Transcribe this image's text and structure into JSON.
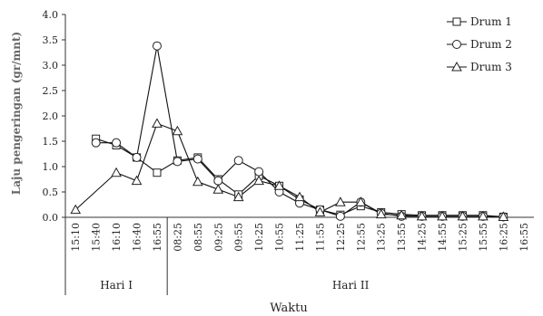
{
  "chart_data": {
    "type": "line",
    "title": "",
    "ylabel": "Laju pengeringan (gr/mnt)",
    "xlabel": "Waktu",
    "ylim": [
      0,
      4
    ],
    "y_ticks": [
      "0.0",
      "0.5",
      "1.0",
      "1.5",
      "2.0",
      "2.5",
      "3.0",
      "3.5",
      "4.0"
    ],
    "categories": [
      "15:10",
      "15:40",
      "16:10",
      "16:40",
      "16:55",
      "08:25",
      "08:55",
      "09:25",
      "09:55",
      "10:25",
      "10:55",
      "11:25",
      "11:55",
      "12:25",
      "12:55",
      "13:25",
      "13:55",
      "14:25",
      "14:55",
      "15:25",
      "15:55",
      "16:25",
      "16:55"
    ],
    "groups": [
      {
        "label": "Hari I",
        "from": 0,
        "to": 4
      },
      {
        "label": "Hari II",
        "from": 5,
        "to": 22
      }
    ],
    "legend_position": "top-right",
    "series": [
      {
        "name": "Drum 1",
        "marker": "square",
        "values": [
          null,
          1.55,
          1.42,
          1.18,
          0.88,
          1.12,
          1.18,
          0.75,
          0.45,
          0.82,
          0.62,
          0.35,
          0.15,
          0.05,
          0.22,
          0.1,
          0.06,
          0.04,
          0.04,
          0.04,
          0.04,
          0.01,
          null
        ]
      },
      {
        "name": "Drum 2",
        "marker": "circle",
        "values": [
          null,
          1.47,
          1.47,
          1.18,
          3.38,
          1.1,
          1.15,
          0.72,
          1.12,
          0.9,
          0.5,
          0.28,
          0.15,
          0.02,
          0.3,
          0.08,
          0.02,
          0.02,
          0.02,
          0.02,
          0.02,
          0.01,
          null
        ]
      },
      {
        "name": "Drum 3",
        "marker": "triangle",
        "values": [
          0.15,
          null,
          0.88,
          0.72,
          1.85,
          1.7,
          0.7,
          0.55,
          0.4,
          0.72,
          0.62,
          0.4,
          0.1,
          0.3,
          0.3,
          0.06,
          0.04,
          0.02,
          0.02,
          0.02,
          0.02,
          0.01,
          null
        ]
      }
    ]
  }
}
